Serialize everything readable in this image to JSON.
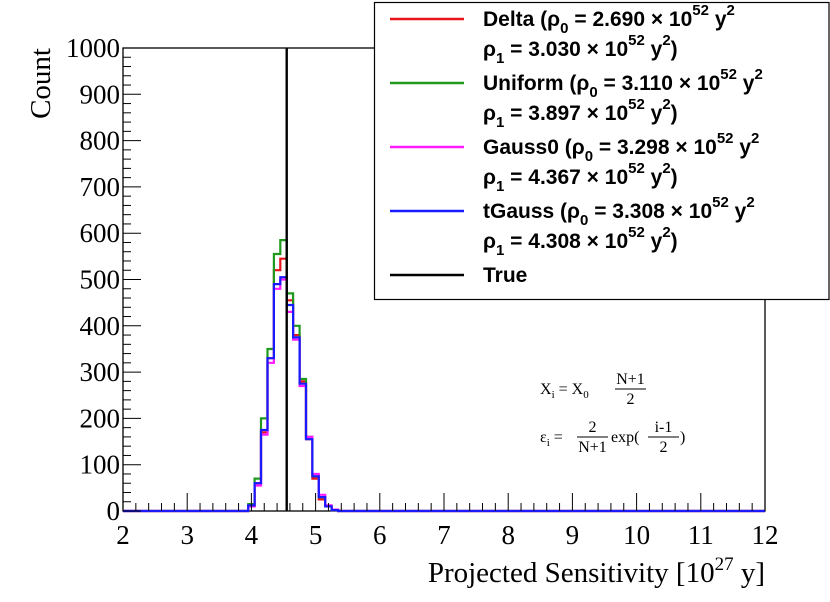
{
  "chart_data": {
    "type": "histogram",
    "title": "",
    "xlabel": "Projected Sensitivity [10",
    "xlabel_exponent": "27",
    "xlabel_suffix": " y]",
    "ylabel": "Count",
    "xlim": [
      2,
      12
    ],
    "ylim": [
      0,
      1000
    ],
    "x_ticks": [
      "2",
      "3",
      "4",
      "5",
      "6",
      "7",
      "8",
      "9",
      "10",
      "11",
      "12"
    ],
    "y_ticks": [
      "0",
      "100",
      "200",
      "300",
      "400",
      "500",
      "600",
      "700",
      "800",
      "900",
      "1000"
    ],
    "grid": false,
    "true_value": 4.55,
    "series": [
      {
        "name": "Delta",
        "color": "#e8141a",
        "legend_line1": [
          "Delta (ρ",
          "0",
          " = 2.690 × 10",
          "52",
          " y",
          "2"
        ],
        "legend_line2": [
          "ρ",
          "1",
          " = 3.030 × 10",
          "52",
          " y",
          "2",
          ")"
        ],
        "x": [
          4.0,
          4.1,
          4.2,
          4.3,
          4.4,
          4.5,
          4.6,
          4.7,
          4.8,
          4.9,
          5.0,
          5.1,
          5.2,
          5.3
        ],
        "values": [
          10,
          60,
          170,
          330,
          520,
          545,
          455,
          380,
          280,
          155,
          70,
          25,
          10,
          2
        ]
      },
      {
        "name": "Uniform",
        "color": "#1f9a1f",
        "legend_line1": [
          "Uniform (ρ",
          "0",
          " = 3.110 × 10",
          "52",
          " y",
          "2"
        ],
        "legend_line2": [
          "ρ",
          "1",
          " = 3.897 × 10",
          "52",
          " y",
          "2",
          ")"
        ],
        "x": [
          4.0,
          4.1,
          4.2,
          4.3,
          4.4,
          4.5,
          4.6,
          4.7,
          4.8,
          4.9,
          5.0,
          5.1,
          5.2,
          5.3
        ],
        "values": [
          15,
          70,
          200,
          350,
          555,
          585,
          470,
          400,
          285,
          160,
          75,
          30,
          10,
          2
        ]
      },
      {
        "name": "Gauss0",
        "color": "#ff1aff",
        "legend_line1": [
          "Gauss0 (ρ",
          "0",
          " = 3.298 × 10",
          "52",
          " y",
          "2"
        ],
        "legend_line2": [
          "ρ",
          "1",
          " = 4.367 × 10",
          "52",
          " y",
          "2",
          ")"
        ],
        "x": [
          4.0,
          4.1,
          4.2,
          4.3,
          4.4,
          4.5,
          4.6,
          4.7,
          4.8,
          4.9,
          5.0,
          5.1,
          5.2,
          5.3
        ],
        "values": [
          10,
          55,
          165,
          320,
          480,
          500,
          430,
          370,
          270,
          160,
          80,
          35,
          12,
          3
        ]
      },
      {
        "name": "tGauss",
        "color": "#1a1aff",
        "legend_line1": [
          "tGauss (ρ",
          "0",
          " = 3.308 × 10",
          "52",
          " y",
          "2"
        ],
        "legend_line2": [
          "ρ",
          "1",
          " = 4.308 × 10",
          "52",
          " y",
          "2",
          ")"
        ],
        "x": [
          4.0,
          4.1,
          4.2,
          4.3,
          4.4,
          4.5,
          4.6,
          4.7,
          4.8,
          4.9,
          5.0,
          5.1,
          5.2,
          5.3
        ],
        "values": [
          12,
          60,
          175,
          330,
          490,
          505,
          445,
          375,
          275,
          155,
          75,
          30,
          10,
          2
        ]
      }
    ],
    "legend_true_label": "True",
    "legend_true_color": "#000000",
    "legend_placement": "top-right",
    "annotations": {
      "formula1": {
        "lhs": "X",
        "lhs_sub": "i",
        "mid": " = X",
        "mid_sub": "0",
        "frac_num": "N+1",
        "frac_den": "2"
      },
      "formula2": {
        "lhs": "ε",
        "lhs_sub": "i",
        "mid": " = ",
        "frac_num": "2",
        "frac_den": "N+1",
        "post": " exp(",
        "frac2_num": "i-1",
        "frac2_den": "2",
        "close": ")"
      }
    }
  }
}
